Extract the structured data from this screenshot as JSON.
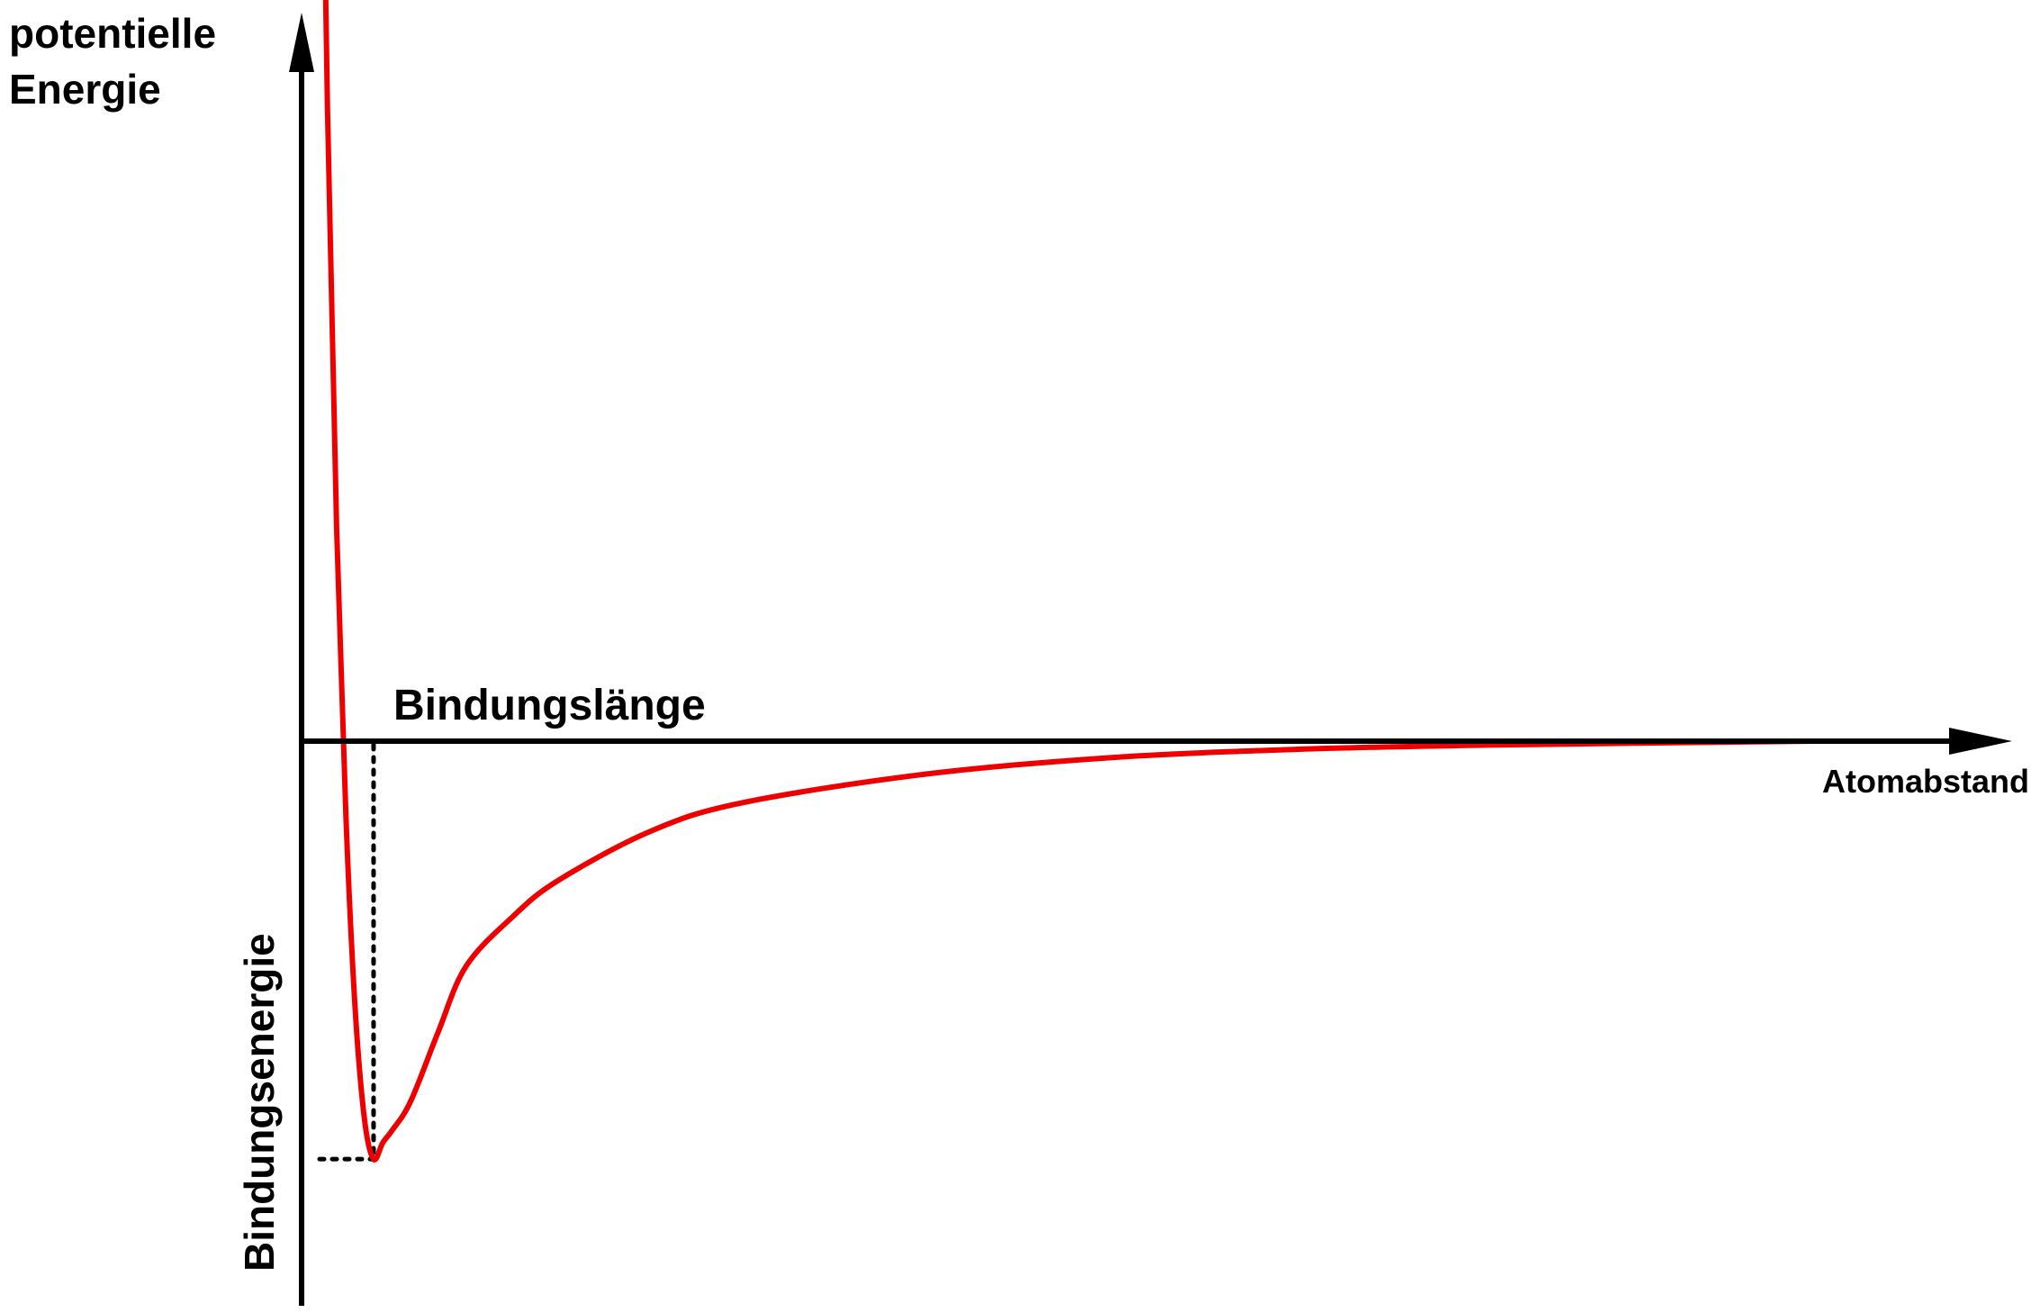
{
  "chart_data": {
    "type": "line",
    "ylabel": [
      "potentielle",
      "Energie"
    ],
    "xlabel": "Atomabstand",
    "annotations": {
      "bond_length": "Bindungslänge",
      "bond_energy": "Bindungsenergie"
    },
    "series": [
      {
        "color": "#ee0000",
        "x": [
          0.7,
          0.75,
          0.8,
          0.85,
          0.9,
          0.95,
          1.0,
          1.05,
          1.1,
          1.2,
          1.35,
          1.5,
          1.75,
          2.0,
          2.5,
          3.0,
          4.0,
          5.0,
          6.0,
          7.0,
          8.8
        ],
        "y": [
          4.03,
          2.55,
          1.52,
          0.82,
          0.35,
          0.08,
          -0.02,
          0.02,
          0.05,
          0.12,
          0.29,
          0.45,
          0.57,
          0.66,
          0.78,
          0.85,
          0.92,
          0.96,
          0.98,
          0.99,
          1.0
        ]
      }
    ],
    "markers": {
      "minimum": {
        "x": 1.0,
        "y": -0.02
      }
    },
    "colors": {
      "curve": "#ee0000",
      "axes": "#000000"
    },
    "grid": false,
    "legend": "none"
  }
}
